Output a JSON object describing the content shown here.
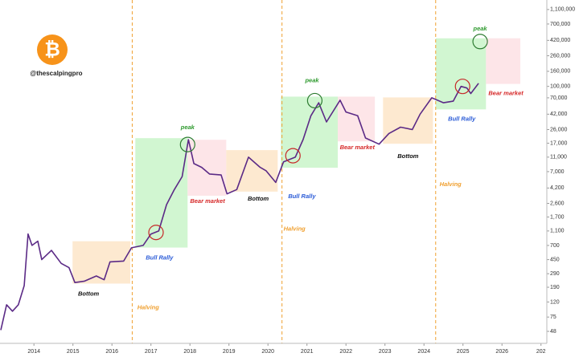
{
  "chart_data": {
    "type": "line",
    "log_scale": true,
    "logo": "₿",
    "handle": "@thescalpingpro",
    "color": "#5b2a86",
    "x": [
      2013.15,
      2013.3,
      2013.45,
      2013.6,
      2013.75,
      2013.85,
      2013.95,
      2014.1,
      2014.2,
      2014.45,
      2014.7,
      2014.9,
      2015.05,
      2015.3,
      2015.6,
      2015.8,
      2015.95,
      2016.3,
      2016.5,
      2016.8,
      2017.0,
      2017.2,
      2017.4,
      2017.6,
      2017.8,
      2017.96,
      2018.1,
      2018.3,
      2018.5,
      2018.8,
      2018.95,
      2019.2,
      2019.5,
      2019.8,
      2019.95,
      2020.2,
      2020.4,
      2020.7,
      2020.9,
      2021.1,
      2021.3,
      2021.5,
      2021.85,
      2022.0,
      2022.3,
      2022.5,
      2022.85,
      2023.1,
      2023.4,
      2023.7,
      2023.9,
      2024.2,
      2024.5,
      2024.75,
      2024.95,
      2025.1,
      2025.2,
      2025.4
    ],
    "values": [
      50,
      110,
      90,
      110,
      200,
      1000,
      700,
      800,
      450,
      600,
      400,
      350,
      220,
      230,
      270,
      240,
      420,
      430,
      650,
      700,
      1000,
      1100,
      2500,
      4000,
      6000,
      19000,
      9000,
      8000,
      6500,
      6300,
      3500,
      4000,
      11000,
      8000,
      7200,
      5000,
      9500,
      11000,
      19000,
      40000,
      60000,
      33000,
      65000,
      45000,
      40000,
      20000,
      16500,
      23000,
      28000,
      26000,
      42000,
      70000,
      60000,
      63000,
      100000,
      95000,
      80000,
      110000
    ],
    "xlim": [
      2013.13,
      2027.15
    ],
    "ylim": [
      33,
      1480000
    ],
    "xticks": [
      2014,
      2015,
      2016,
      2017,
      2018,
      2019,
      2020,
      2021,
      2022,
      2023,
      2024,
      2025,
      2026,
      {
        "value": 2027,
        "label": "202"
      }
    ],
    "yticks": [
      {
        "value": 1100000,
        "label": "1,100,000"
      },
      {
        "value": 700000,
        "label": "700,000"
      },
      {
        "value": 420000,
        "label": "420,000"
      },
      {
        "value": 260000,
        "label": "260,000"
      },
      {
        "value": 160000,
        "label": "160,000"
      },
      {
        "value": 100000,
        "label": "100,000"
      },
      {
        "value": 70000,
        "label": "70,000"
      },
      {
        "value": 42000,
        "label": "42,000"
      },
      {
        "value": 26000,
        "label": "26,000"
      },
      {
        "value": 17000,
        "label": "17,000"
      },
      {
        "value": 11000,
        "label": "11,000"
      },
      {
        "value": 7000,
        "label": "7,000"
      },
      {
        "value": 4200,
        "label": "4,200"
      },
      {
        "value": 2600,
        "label": "2,600"
      },
      {
        "value": 1700,
        "label": "1,700"
      },
      {
        "value": 1100,
        "label": "1,100"
      },
      700,
      450,
      290,
      190,
      120,
      75,
      48
    ],
    "zones": [
      {
        "x": [
          2014.99,
          2016.47
        ],
        "y": [
          213,
          798
        ],
        "color": "#fde5c8"
      },
      {
        "x": [
          2016.6,
          2017.94
        ],
        "y": [
          655,
          19900
        ],
        "color": "#c9f5c9"
      },
      {
        "x": [
          2017.94,
          2018.93
        ],
        "y": [
          3300,
          18900
        ],
        "color": "#fde1e4"
      },
      {
        "x": [
          2018.93,
          2020.25
        ],
        "y": [
          3750,
          13700
        ],
        "color": "#fde5c8"
      },
      {
        "x": [
          2020.33,
          2021.79
        ],
        "y": [
          7900,
          72600
        ],
        "color": "#c9f5c9"
      },
      {
        "x": [
          2021.79,
          2022.74
        ],
        "y": [
          18000,
          72600
        ],
        "color": "#fde1e4"
      },
      {
        "x": [
          2022.95,
          2024.23
        ],
        "y": [
          16700,
          70900
        ],
        "color": "#fde5c8"
      },
      {
        "x": [
          2024.3,
          2025.59
        ],
        "y": [
          48800,
          448000
        ],
        "color": "#c9f5c9"
      },
      {
        "x": [
          2025.59,
          2026.47
        ],
        "y": [
          108000,
          448000
        ],
        "color": "#fde1e4"
      }
    ],
    "halving_lines": [
      2016.52,
      2020.36,
      2024.3
    ],
    "halving_color": "#f0a030",
    "circles": [
      {
        "x": 2017.94,
        "y": 16300,
        "color": "#2e7d32"
      },
      {
        "x": 2021.2,
        "y": 64100,
        "color": "#2e7d32"
      },
      {
        "x": 2025.44,
        "y": 405000,
        "color": "#2e7d32"
      },
      {
        "x": 2017.13,
        "y": 1050,
        "color": "#c62828"
      },
      {
        "x": 2020.64,
        "y": 11500,
        "color": "#c62828"
      },
      {
        "x": 2024.99,
        "y": 100000,
        "color": "#c62828"
      }
    ],
    "notes": [
      {
        "text": "Bottom",
        "x": 2015.4,
        "y": 154,
        "color": "#111"
      },
      {
        "text": "Bull Rally",
        "x": 2017.22,
        "y": 473,
        "color": "#2a5bd7"
      },
      {
        "text": "Bear market",
        "x": 2018.45,
        "y": 2780,
        "color": "#d62828"
      },
      {
        "text": "Bottom",
        "x": 2019.75,
        "y": 3000,
        "color": "#111"
      },
      {
        "text": "Bull Rally",
        "x": 2020.87,
        "y": 3230,
        "color": "#2a5bd7"
      },
      {
        "text": "Bear market",
        "x": 2022.29,
        "y": 14800,
        "color": "#d62828"
      },
      {
        "text": "Bottom",
        "x": 2023.59,
        "y": 11200,
        "color": "#111"
      },
      {
        "text": "Bull Rally",
        "x": 2024.97,
        "y": 36000,
        "color": "#2a5bd7"
      },
      {
        "text": "Bear market",
        "x": 2026.1,
        "y": 80000,
        "color": "#d62828"
      },
      {
        "text": "peak",
        "x": 2017.94,
        "y": 27500,
        "color": "#2e9a2e"
      },
      {
        "text": "peak",
        "x": 2021.13,
        "y": 120000,
        "color": "#2e9a2e"
      },
      {
        "text": "peak",
        "x": 2025.44,
        "y": 600000,
        "color": "#2e9a2e"
      },
      {
        "text": "Halving",
        "x": 2016.93,
        "y": 100,
        "color": "#f0a030"
      },
      {
        "text": "Halving",
        "x": 2020.68,
        "y": 1160,
        "color": "#f0a030"
      },
      {
        "text": "Halving",
        "x": 2024.68,
        "y": 4690,
        "color": "#f0a030"
      }
    ]
  }
}
